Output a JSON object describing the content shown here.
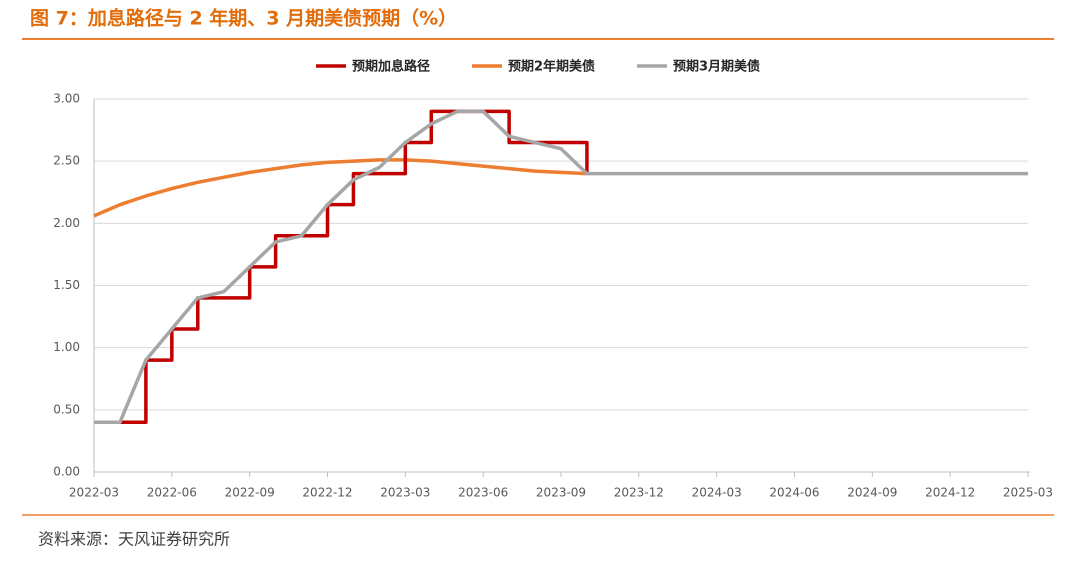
{
  "chart_data": {
    "type": "line",
    "title": "图 7：加息路径与 2 年期、3 月期美债预期（%）",
    "source": "资料来源：天风证券研究所",
    "x": [
      "2022-03",
      "2022-04",
      "2022-05",
      "2022-06",
      "2022-07",
      "2022-08",
      "2022-09",
      "2022-10",
      "2022-11",
      "2022-12",
      "2023-01",
      "2023-02",
      "2023-03",
      "2023-04",
      "2023-05",
      "2023-06",
      "2023-07",
      "2023-08",
      "2023-09",
      "2023-10",
      "2023-11",
      "2023-12",
      "2024-01",
      "2024-02",
      "2024-03",
      "2024-04",
      "2024-05",
      "2024-06",
      "2024-07",
      "2024-08",
      "2024-09",
      "2024-10",
      "2024-11",
      "2024-12",
      "2025-01",
      "2025-02",
      "2025-03"
    ],
    "xticks": [
      "2022-03",
      "2022-06",
      "2022-09",
      "2022-12",
      "2023-03",
      "2023-06",
      "2023-09",
      "2023-12",
      "2024-03",
      "2024-06",
      "2024-09",
      "2024-12",
      "2025-03"
    ],
    "ylim": [
      0,
      3
    ],
    "yticks": [
      {
        "value": 0,
        "label": "0.00"
      },
      {
        "value": 0.5,
        "label": "0.50"
      },
      {
        "value": 1,
        "label": "1.00"
      },
      {
        "value": 1.5,
        "label": "1.50"
      },
      {
        "value": 2,
        "label": "2.00"
      },
      {
        "value": 2.5,
        "label": "2.50"
      },
      {
        "value": 3,
        "label": "3.00"
      }
    ],
    "grid": true,
    "series": [
      {
        "name": "预期加息路径",
        "color": "#c00000",
        "step": true,
        "values": [
          0.4,
          0.4,
          0.9,
          1.15,
          1.4,
          1.4,
          1.65,
          1.9,
          1.9,
          2.15,
          2.4,
          2.4,
          2.65,
          2.9,
          2.9,
          2.9,
          2.65,
          2.65,
          2.65,
          2.4,
          null,
          null,
          null,
          null,
          null,
          null,
          null,
          null,
          null,
          null,
          null,
          null,
          null,
          null,
          null,
          null,
          null
        ]
      },
      {
        "name": "预期2年期美债",
        "color": "#ed7d31",
        "values": [
          2.06,
          2.15,
          2.22,
          2.28,
          2.33,
          2.37,
          2.41,
          2.44,
          2.47,
          2.49,
          2.5,
          2.51,
          2.51,
          2.5,
          2.48,
          2.46,
          2.44,
          2.42,
          2.41,
          2.4,
          null,
          null,
          null,
          null,
          null,
          null,
          null,
          null,
          null,
          null,
          null,
          null,
          null,
          null,
          null,
          null,
          null
        ]
      },
      {
        "name": "预期3月期美债",
        "color": "#a6a6a6",
        "values": [
          0.4,
          0.4,
          0.9,
          1.15,
          1.4,
          1.45,
          1.65,
          1.85,
          1.9,
          2.15,
          2.35,
          2.45,
          2.65,
          2.8,
          2.9,
          2.9,
          2.7,
          2.65,
          2.6,
          2.4,
          2.4,
          2.4,
          2.4,
          2.4,
          2.4,
          2.4,
          2.4,
          2.4,
          2.4,
          2.4,
          2.4,
          2.4,
          2.4,
          2.4,
          2.4,
          2.4,
          2.4
        ]
      }
    ]
  }
}
